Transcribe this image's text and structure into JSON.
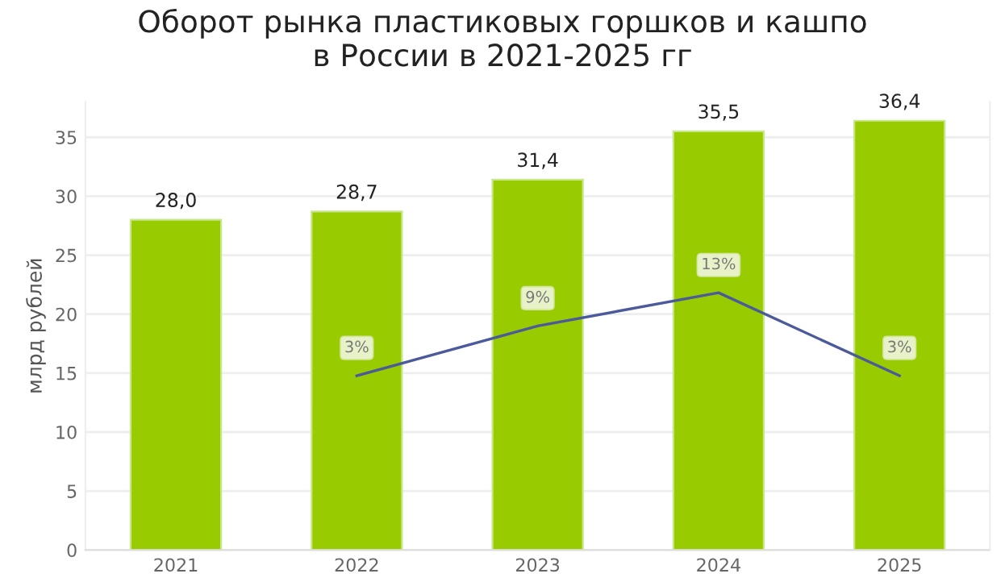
{
  "chart_data": {
    "type": "bar",
    "title": "Оборот рынка пластиковых горшков и кашпо\nв России в 2021-2025 гг",
    "ylabel": "млрд рублей",
    "categories": [
      "2021",
      "2022",
      "2023",
      "2024",
      "2025"
    ],
    "series": [
      {
        "color": "#99cc00",
        "values": [
          28.0,
          28.7,
          31.4,
          35.5,
          36.4
        ],
        "value_labels": [
          "28,0",
          "28,7",
          "31,4",
          "35,5",
          "36,4"
        ]
      },
      {
        "type": "line",
        "axis": "y2",
        "color": "#4a5a9a",
        "values": [
          null,
          3,
          9,
          13,
          3
        ],
        "value_labels": [
          null,
          "3%",
          "9%",
          "13%",
          "3%"
        ]
      }
    ],
    "ylim": [
      0,
      38
    ],
    "yticks": [
      0,
      5,
      10,
      15,
      20,
      25,
      30,
      35
    ],
    "y2lim": [
      -18,
      36
    ],
    "grid": "y",
    "marker": "none",
    "line_style": "solid"
  }
}
